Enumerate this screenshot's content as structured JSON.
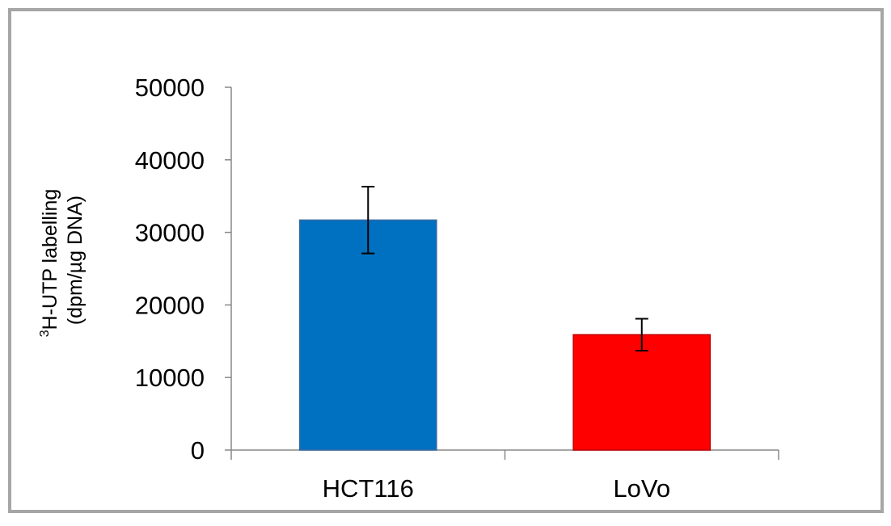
{
  "chart_data": {
    "type": "bar",
    "categories": [
      "HCT116",
      "LoVo"
    ],
    "values": [
      31700,
      15900
    ],
    "error": [
      4600,
      2200
    ],
    "colors": [
      "#0070c0",
      "#ff0000"
    ],
    "ylabel_line1_sup": "3",
    "ylabel_line1": "H-UTP labelling",
    "ylabel_line2": "(dpm/µg DNA)",
    "ylim": [
      0,
      50000
    ],
    "yticks": [
      "0",
      "10000",
      "20000",
      "30000",
      "40000",
      "50000"
    ],
    "grid": false
  }
}
